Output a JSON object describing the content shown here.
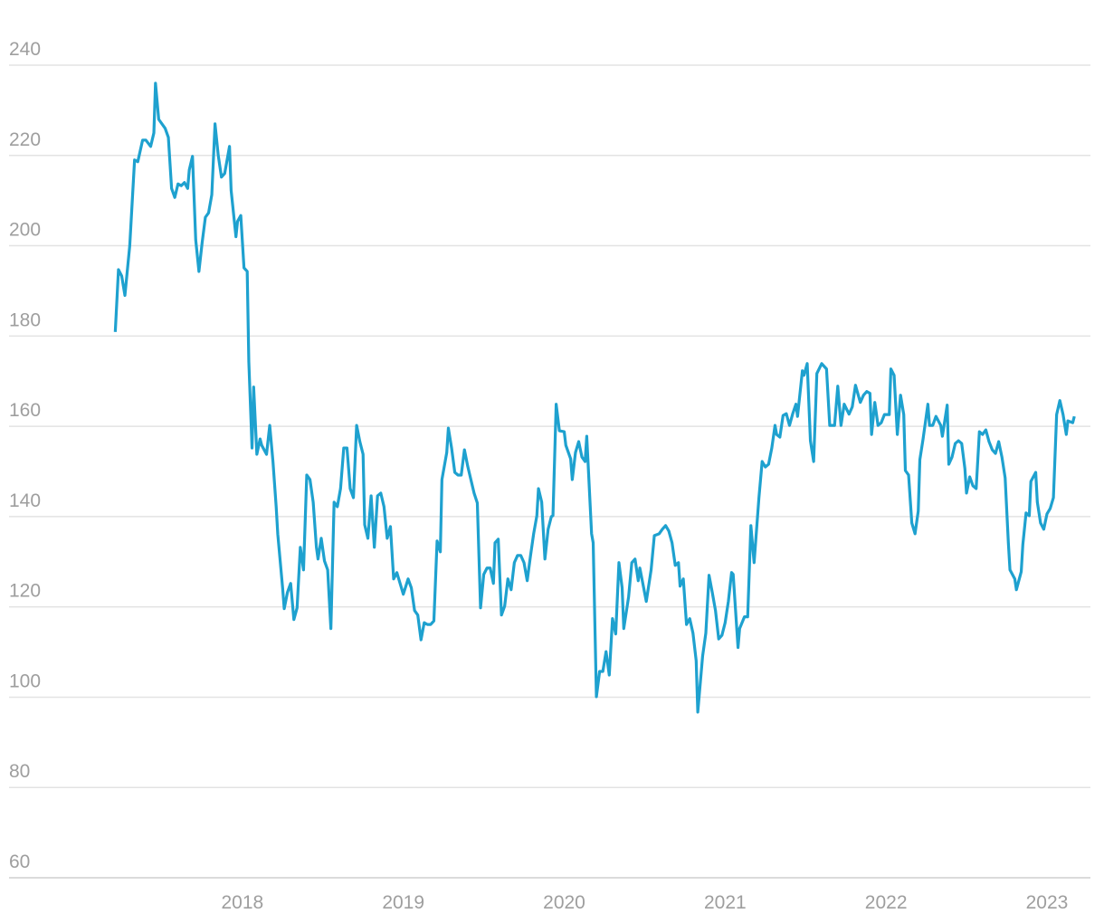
{
  "chart_data": {
    "type": "line",
    "x": [
      2017.21,
      2017.23,
      2017.25,
      2017.27,
      2017.3,
      2017.33,
      2017.35,
      2017.38,
      2017.4,
      2017.43,
      2017.45,
      2017.46,
      2017.48,
      2017.52,
      2017.54,
      2017.56,
      2017.58,
      2017.6,
      2017.62,
      2017.64,
      2017.66,
      2017.67,
      2017.69,
      2017.71,
      2017.73,
      2017.75,
      2017.77,
      2017.79,
      2017.81,
      2017.83,
      2017.85,
      2017.87,
      2017.89,
      2017.92,
      2017.93,
      2017.96,
      2017.97,
      2017.99,
      2018.01,
      2018.03,
      2018.04,
      2018.06,
      2018.07,
      2018.09,
      2018.11,
      2018.12,
      2018.15,
      2018.17,
      2018.19,
      2018.21,
      2018.22,
      2018.25,
      2018.26,
      2018.28,
      2018.3,
      2018.32,
      2018.34,
      2018.36,
      2018.38,
      2018.4,
      2018.42,
      2018.44,
      2018.46,
      2018.47,
      2018.49,
      2018.51,
      2018.53,
      2018.55,
      2018.57,
      2018.59,
      2018.61,
      2018.63,
      2018.65,
      2018.67,
      2018.69,
      2018.71,
      2018.73,
      2018.75,
      2018.76,
      2018.78,
      2018.8,
      2018.82,
      2018.84,
      2018.86,
      2018.88,
      2018.9,
      2018.92,
      2018.94,
      2018.96,
      2018.98,
      2019.0,
      2019.03,
      2019.05,
      2019.07,
      2019.09,
      2019.11,
      2019.13,
      2019.15,
      2019.17,
      2019.19,
      2019.21,
      2019.23,
      2019.24,
      2019.27,
      2019.28,
      2019.3,
      2019.32,
      2019.34,
      2019.36,
      2019.38,
      2019.4,
      2019.42,
      2019.44,
      2019.46,
      2019.48,
      2019.5,
      2019.52,
      2019.54,
      2019.56,
      2019.57,
      2019.59,
      2019.61,
      2019.63,
      2019.65,
      2019.67,
      2019.69,
      2019.71,
      2019.73,
      2019.75,
      2019.77,
      2019.79,
      2019.81,
      2019.83,
      2019.84,
      2019.86,
      2019.88,
      2019.9,
      2019.92,
      2019.93,
      2019.95,
      2019.97,
      2020.0,
      2020.01,
      2020.04,
      2020.05,
      2020.07,
      2020.09,
      2020.11,
      2020.13,
      2020.14,
      2020.17,
      2020.18,
      2020.2,
      2020.22,
      2020.24,
      2020.26,
      2020.28,
      2020.3,
      2020.32,
      2020.34,
      2020.36,
      2020.37,
      2020.4,
      2020.42,
      2020.44,
      2020.46,
      2020.47,
      2020.51,
      2020.54,
      2020.56,
      2020.59,
      2020.61,
      2020.63,
      2020.65,
      2020.67,
      2020.69,
      2020.71,
      2020.72,
      2020.74,
      2020.76,
      2020.78,
      2020.8,
      2020.82,
      2020.83,
      2020.86,
      2020.88,
      2020.9,
      2020.92,
      2020.94,
      2020.96,
      2020.98,
      2021.0,
      2021.02,
      2021.04,
      2021.05,
      2021.08,
      2021.09,
      2021.12,
      2021.14,
      2021.16,
      2021.18,
      2021.21,
      2021.23,
      2021.25,
      2021.27,
      2021.29,
      2021.31,
      2021.32,
      2021.34,
      2021.36,
      2021.38,
      2021.4,
      2021.42,
      2021.44,
      2021.45,
      2021.48,
      2021.49,
      2021.51,
      2021.53,
      2021.55,
      2021.57,
      2021.6,
      2021.63,
      2021.65,
      2021.68,
      2021.7,
      2021.72,
      2021.74,
      2021.77,
      2021.79,
      2021.81,
      2021.84,
      2021.86,
      2021.88,
      2021.9,
      2021.91,
      2021.93,
      2021.95,
      2021.97,
      2021.99,
      2022.02,
      2022.03,
      2022.05,
      2022.07,
      2022.09,
      2022.11,
      2022.12,
      2022.14,
      2022.16,
      2022.18,
      2022.2,
      2022.21,
      2022.23,
      2022.26,
      2022.27,
      2022.29,
      2022.31,
      2022.34,
      2022.35,
      2022.38,
      2022.39,
      2022.41,
      2022.43,
      2022.45,
      2022.47,
      2022.49,
      2022.5,
      2022.52,
      2022.54,
      2022.56,
      2022.58,
      2022.6,
      2022.62,
      2022.64,
      2022.66,
      2022.68,
      2022.7,
      2022.72,
      2022.74,
      2022.76,
      2022.77,
      2022.8,
      2022.81,
      2022.84,
      2022.85,
      2022.87,
      2022.89,
      2022.9,
      2022.93,
      2022.94,
      2022.96,
      2022.98,
      2023.0,
      2023.02,
      2023.04,
      2023.06,
      2023.08,
      2023.1,
      2023.12,
      2023.13,
      2023.16,
      2023.17
    ],
    "values": [
      180.9,
      194.7,
      193.3,
      189,
      200,
      219,
      218.6,
      223.4,
      223.4,
      222,
      225,
      236,
      228,
      226,
      224,
      212.7,
      210.7,
      213.7,
      213.3,
      214,
      212.7,
      216.8,
      219.8,
      201.3,
      194.3,
      200.7,
      206.3,
      207.3,
      211.3,
      227,
      220,
      215.2,
      216,
      222,
      212.3,
      202,
      205.4,
      206.7,
      195.1,
      194.3,
      174.3,
      155.2,
      168.7,
      153.8,
      157.2,
      155.8,
      153.8,
      160.2,
      152.2,
      142.2,
      136.1,
      124.2,
      119.6,
      123.2,
      125.2,
      117.2,
      119.8,
      133.2,
      128.2,
      149.2,
      148.2,
      143.2,
      133.2,
      130.6,
      135.2,
      130.2,
      128.2,
      115.2,
      143.2,
      142.2,
      146.2,
      155.2,
      155.2,
      146.2,
      144.2,
      160.2,
      156.6,
      153.8,
      138.2,
      135.2,
      144.6,
      133.2,
      144.6,
      145.2,
      142.2,
      135.2,
      137.8,
      126.2,
      127.6,
      125.2,
      122.8,
      126.2,
      124.2,
      119.2,
      118.2,
      112.7,
      116.5,
      116.1,
      116.1,
      116.9,
      134.6,
      132.2,
      148.2,
      154.2,
      159.6,
      155.2,
      149.8,
      149.2,
      149.2,
      154.8,
      151.2,
      148.2,
      145.2,
      143,
      119.8,
      127.2,
      128.6,
      128.6,
      125.2,
      134.2,
      135,
      118.2,
      120.2,
      126.2,
      123.8,
      129.8,
      131.4,
      131.4,
      129.8,
      125.8,
      131.2,
      136.2,
      140.2,
      146.2,
      143.2,
      130.6,
      137.2,
      140,
      140.2,
      164.9,
      159,
      158.8,
      155.8,
      152.8,
      148.2,
      154.2,
      156.6,
      153.2,
      152.2,
      157.8,
      136.2,
      134.2,
      100.1,
      105.7,
      105.7,
      110.1,
      104.9,
      117.4,
      114,
      129.8,
      124.2,
      115.2,
      122.2,
      129.8,
      130.6,
      125.8,
      128.6,
      121.2,
      128.2,
      135.8,
      136.2,
      137.2,
      138,
      136.8,
      134.2,
      129.2,
      129.8,
      124.6,
      126.2,
      116.1,
      117.4,
      114.2,
      108.1,
      96.7,
      109.1,
      114.2,
      127,
      123.2,
      119.2,
      112.9,
      113.7,
      116.5,
      121.2,
      127.6,
      127.2,
      111,
      115.2,
      117.8,
      117.8,
      138,
      129.8,
      144.2,
      152.2,
      151,
      151.6,
      155.2,
      160.2,
      158.2,
      157.6,
      162.4,
      162.8,
      160.2,
      162.8,
      164.9,
      162.2,
      172.3,
      171.3,
      173.9,
      156.8,
      152.2,
      171.7,
      173.9,
      172.7,
      160.2,
      160.2,
      168.9,
      160.2,
      164.9,
      162.7,
      164.3,
      169.1,
      165.3,
      166.9,
      167.7,
      167.3,
      158.2,
      165.3,
      160.2,
      160.8,
      162.6,
      162.6,
      172.7,
      171.3,
      158.2,
      166.9,
      162.6,
      150.2,
      149.2,
      138.6,
      136.2,
      141.2,
      152.6,
      157.2,
      164.9,
      160.2,
      160.2,
      162.2,
      160.2,
      157.8,
      164.7,
      151.6,
      153.2,
      156.2,
      156.8,
      156.2,
      150.6,
      145.2,
      148.8,
      146.8,
      146.2,
      158.8,
      158.2,
      159.2,
      156.6,
      154.8,
      154,
      156.6,
      153.2,
      148.6,
      134.2,
      128.2,
      126.2,
      123.8,
      127.8,
      133.8,
      140.8,
      140.2,
      147.8,
      149.8,
      143.2,
      138.6,
      137.2,
      140.6,
      141.8,
      144.2,
      162.6,
      165.7,
      162.6,
      158.2,
      161.2,
      160.8,
      162.2
    ],
    "color": "#1ea1cf",
    "xlim": [
      2016.55,
      2023.27
    ],
    "xticks": [
      2018,
      2019,
      2020,
      2021,
      2022,
      2023
    ],
    "ylim": [
      60,
      240
    ],
    "yticks": [
      60,
      80,
      100,
      120,
      140,
      160,
      180,
      200,
      220,
      240
    ],
    "grid": true
  }
}
